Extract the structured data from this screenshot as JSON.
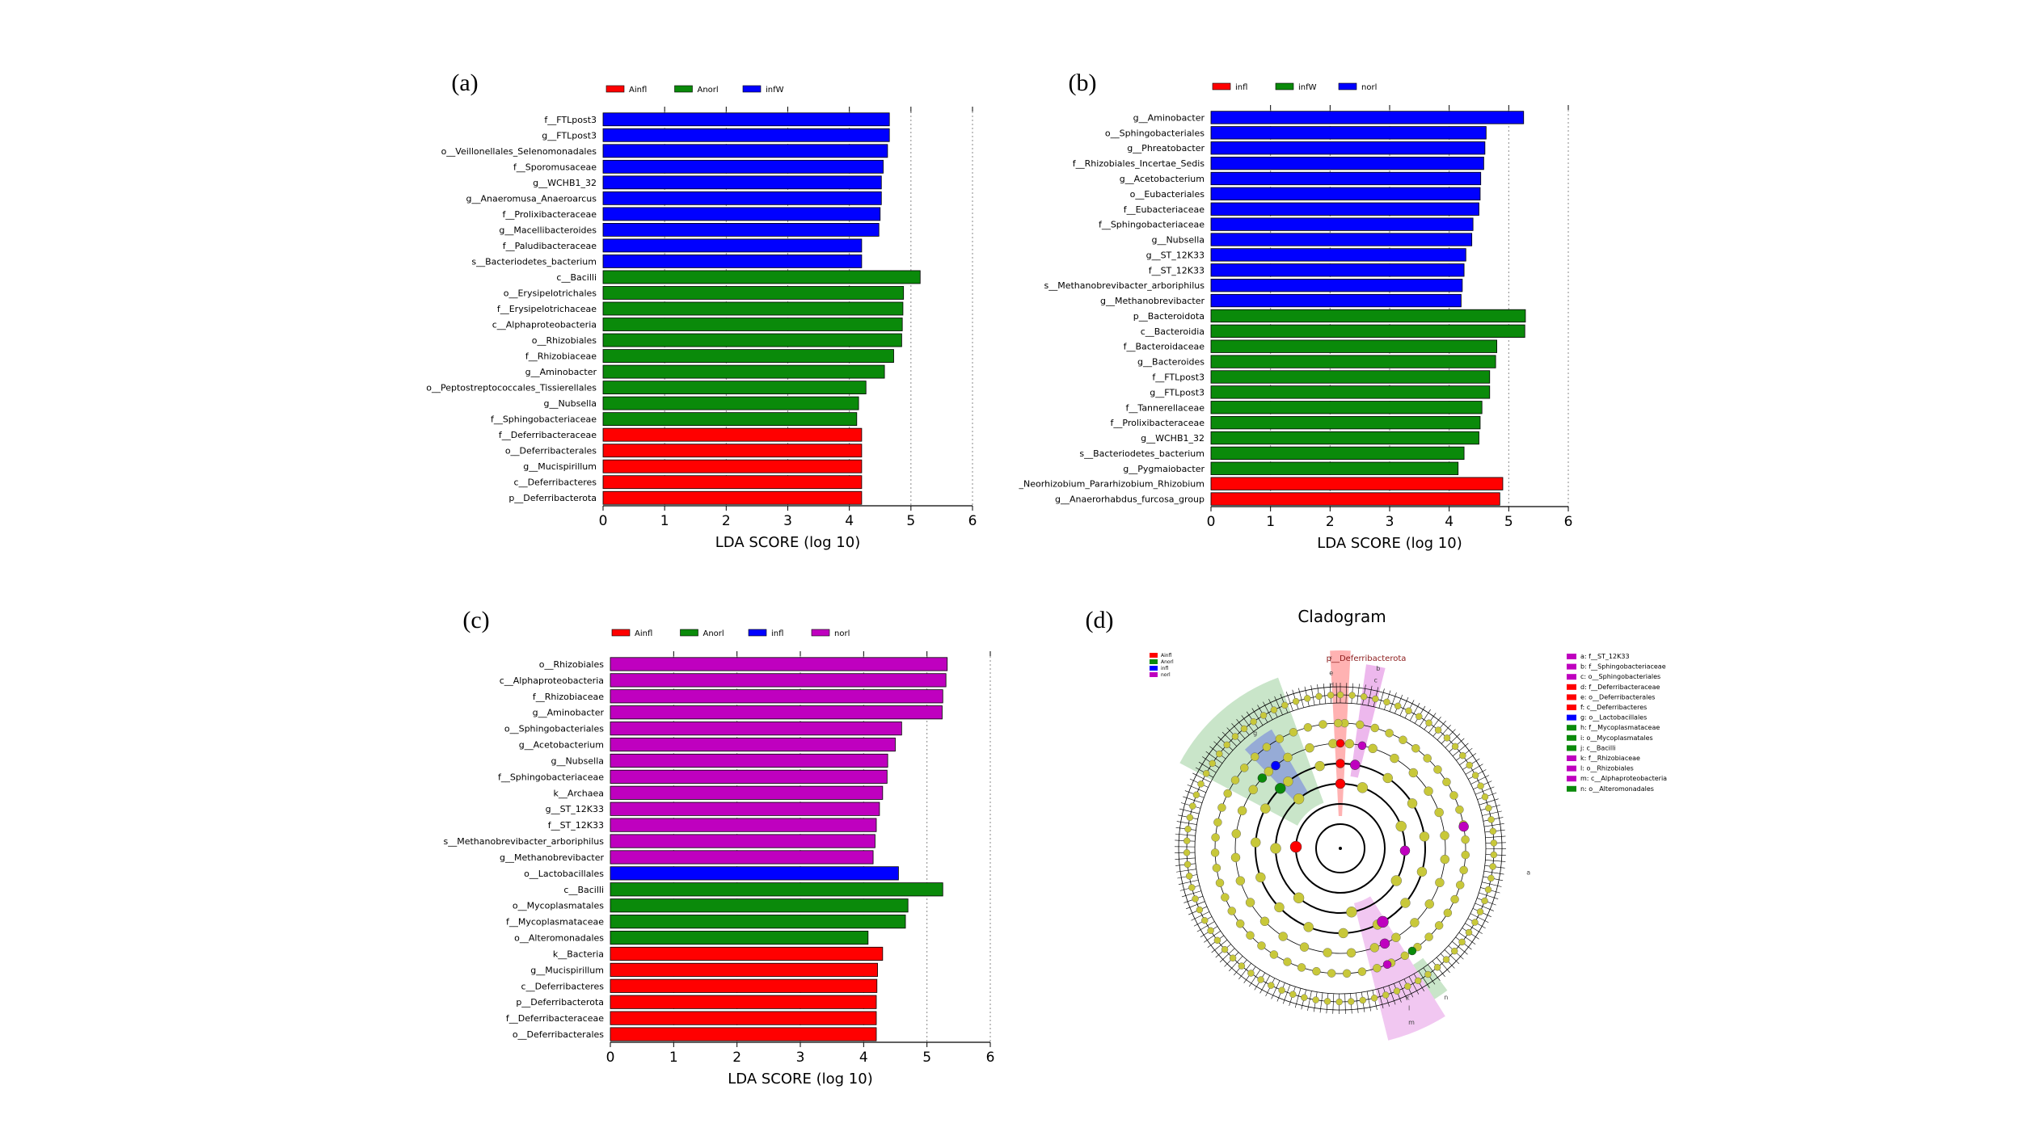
{
  "figure": {
    "colors": {
      "red": "#ff0000",
      "green": "#0a8a0a",
      "blue": "#0000ff",
      "magenta": "#bf00bf",
      "yellow_node": "#c8c83a"
    }
  },
  "chart_data": [
    {
      "type": "bar",
      "panel": "(a)",
      "orientation": "horizontal",
      "xlabel": "LDA SCORE (log 10)",
      "xlim": [
        0,
        6
      ],
      "xticks": [
        0,
        1,
        2,
        3,
        4,
        5,
        6
      ],
      "legend": [
        {
          "name": "Ainfl",
          "color": "#ff0000"
        },
        {
          "name": "Anorl",
          "color": "#0a8a0a"
        },
        {
          "name": "infW",
          "color": "#0000ff"
        }
      ],
      "bars": [
        {
          "label": "f__FTLpost3",
          "value": 4.65,
          "group": "infW"
        },
        {
          "label": "g__FTLpost3",
          "value": 4.65,
          "group": "infW"
        },
        {
          "label": "o__Veillonellales_Selenomonadales",
          "value": 4.62,
          "group": "infW"
        },
        {
          "label": "f__Sporomusaceae",
          "value": 4.55,
          "group": "infW"
        },
        {
          "label": "g__WCHB1_32",
          "value": 4.52,
          "group": "infW"
        },
        {
          "label": "g__Anaeromusa_Anaeroarcus",
          "value": 4.52,
          "group": "infW"
        },
        {
          "label": "f__Prolixibacteraceae",
          "value": 4.5,
          "group": "infW"
        },
        {
          "label": "g__Macellibacteroides",
          "value": 4.48,
          "group": "infW"
        },
        {
          "label": "f__Paludibacteraceae",
          "value": 4.2,
          "group": "infW"
        },
        {
          "label": "s__Bacteriodetes_bacterium",
          "value": 4.2,
          "group": "infW"
        },
        {
          "label": "c__Bacilli",
          "value": 5.15,
          "group": "Anorl"
        },
        {
          "label": "o__Erysipelotrichales",
          "value": 4.88,
          "group": "Anorl"
        },
        {
          "label": "f__Erysipelotrichaceae",
          "value": 4.87,
          "group": "Anorl"
        },
        {
          "label": "c__Alphaproteobacteria",
          "value": 4.86,
          "group": "Anorl"
        },
        {
          "label": "o__Rhizobiales",
          "value": 4.85,
          "group": "Anorl"
        },
        {
          "label": "f__Rhizobiaceae",
          "value": 4.72,
          "group": "Anorl"
        },
        {
          "label": "g__Aminobacter",
          "value": 4.57,
          "group": "Anorl"
        },
        {
          "label": "o__Peptostreptococcales_Tissierellales",
          "value": 4.27,
          "group": "Anorl"
        },
        {
          "label": "g__Nubsella",
          "value": 4.15,
          "group": "Anorl"
        },
        {
          "label": "f__Sphingobacteriaceae",
          "value": 4.12,
          "group": "Anorl"
        },
        {
          "label": "f__Deferribacteraceae",
          "value": 4.2,
          "group": "Ainfl"
        },
        {
          "label": "o__Deferribacterales",
          "value": 4.2,
          "group": "Ainfl"
        },
        {
          "label": "g__Mucispirillum",
          "value": 4.2,
          "group": "Ainfl"
        },
        {
          "label": "c__Deferribacteres",
          "value": 4.2,
          "group": "Ainfl"
        },
        {
          "label": "p__Deferribacterota",
          "value": 4.2,
          "group": "Ainfl"
        }
      ]
    },
    {
      "type": "bar",
      "panel": "(b)",
      "orientation": "horizontal",
      "xlabel": "LDA SCORE (log 10)",
      "xlim": [
        0,
        6
      ],
      "xticks": [
        0,
        1,
        2,
        3,
        4,
        5,
        6
      ],
      "legend": [
        {
          "name": "infl",
          "color": "#ff0000"
        },
        {
          "name": "infW",
          "color": "#0a8a0a"
        },
        {
          "name": "norl",
          "color": "#0000ff"
        }
      ],
      "bars": [
        {
          "label": "g__Aminobacter",
          "value": 5.25,
          "group": "norl"
        },
        {
          "label": "o__Sphingobacteriales",
          "value": 4.62,
          "group": "norl"
        },
        {
          "label": "g__Phreatobacter",
          "value": 4.6,
          "group": "norl"
        },
        {
          "label": "f__Rhizobiales_Incertae_Sedis",
          "value": 4.58,
          "group": "norl"
        },
        {
          "label": "g__Acetobacterium",
          "value": 4.53,
          "group": "norl"
        },
        {
          "label": "o__Eubacteriales",
          "value": 4.52,
          "group": "norl"
        },
        {
          "label": "f__Eubacteriaceae",
          "value": 4.5,
          "group": "norl"
        },
        {
          "label": "f__Sphingobacteriaceae",
          "value": 4.4,
          "group": "norl"
        },
        {
          "label": "g__Nubsella",
          "value": 4.38,
          "group": "norl"
        },
        {
          "label": "g__ST_12K33",
          "value": 4.28,
          "group": "norl"
        },
        {
          "label": "f__ST_12K33",
          "value": 4.25,
          "group": "norl"
        },
        {
          "label": "s__Methanobrevibacter_arboriphilus",
          "value": 4.22,
          "group": "norl"
        },
        {
          "label": "g__Methanobrevibacter",
          "value": 4.2,
          "group": "norl"
        },
        {
          "label": "p__Bacteroidota",
          "value": 5.28,
          "group": "infW"
        },
        {
          "label": "c__Bacteroidia",
          "value": 5.27,
          "group": "infW"
        },
        {
          "label": "f__Bacteroidaceae",
          "value": 4.8,
          "group": "infW"
        },
        {
          "label": "g__Bacteroides",
          "value": 4.78,
          "group": "infW"
        },
        {
          "label": "f__FTLpost3",
          "value": 4.68,
          "group": "infW"
        },
        {
          "label": "g__FTLpost3",
          "value": 4.68,
          "group": "infW"
        },
        {
          "label": "f__Tannerellaceae",
          "value": 4.55,
          "group": "infW"
        },
        {
          "label": "f__Prolixibacteraceae",
          "value": 4.52,
          "group": "infW"
        },
        {
          "label": "g__WCHB1_32",
          "value": 4.5,
          "group": "infW"
        },
        {
          "label": "s__Bacteriodetes_bacterium",
          "value": 4.25,
          "group": "infW"
        },
        {
          "label": "g__Pygmaiobacter",
          "value": 4.15,
          "group": "infW"
        },
        {
          "label": "_Neorhizobium_Pararhizobium_Rhizobium",
          "value": 4.9,
          "group": "infl"
        },
        {
          "label": "g__Anaerorhabdus_furcosa_group",
          "value": 4.85,
          "group": "infl"
        }
      ]
    },
    {
      "type": "bar",
      "panel": "(c)",
      "orientation": "horizontal",
      "xlabel": "LDA SCORE (log 10)",
      "xlim": [
        0,
        6
      ],
      "xticks": [
        0,
        1,
        2,
        3,
        4,
        5,
        6
      ],
      "legend": [
        {
          "name": "Ainfl",
          "color": "#ff0000"
        },
        {
          "name": "Anorl",
          "color": "#0a8a0a"
        },
        {
          "name": "infl",
          "color": "#0000ff"
        },
        {
          "name": "norl",
          "color": "#bf00bf"
        }
      ],
      "bars": [
        {
          "label": "o__Rhizobiales",
          "value": 5.32,
          "group": "norl"
        },
        {
          "label": "c__Alphaproteobacteria",
          "value": 5.3,
          "group": "norl"
        },
        {
          "label": "f__Rhizobiaceae",
          "value": 5.25,
          "group": "norl"
        },
        {
          "label": "g__Aminobacter",
          "value": 5.24,
          "group": "norl"
        },
        {
          "label": "o__Sphingobacteriales",
          "value": 4.6,
          "group": "norl"
        },
        {
          "label": "g__Acetobacterium",
          "value": 4.5,
          "group": "norl"
        },
        {
          "label": "g__Nubsella",
          "value": 4.38,
          "group": "norl"
        },
        {
          "label": "f__Sphingobacteriaceae",
          "value": 4.37,
          "group": "norl"
        },
        {
          "label": "k__Archaea",
          "value": 4.3,
          "group": "norl"
        },
        {
          "label": "g__ST_12K33",
          "value": 4.25,
          "group": "norl"
        },
        {
          "label": "f__ST_12K33",
          "value": 4.2,
          "group": "norl"
        },
        {
          "label": "s__Methanobrevibacter_arboriphilus",
          "value": 4.18,
          "group": "norl"
        },
        {
          "label": "g__Methanobrevibacter",
          "value": 4.15,
          "group": "norl"
        },
        {
          "label": "o__Lactobacillales",
          "value": 4.55,
          "group": "infl"
        },
        {
          "label": "c__Bacilli",
          "value": 5.25,
          "group": "Anorl"
        },
        {
          "label": "o__Mycoplasmatales",
          "value": 4.7,
          "group": "Anorl"
        },
        {
          "label": "f__Mycoplasmataceae",
          "value": 4.66,
          "group": "Anorl"
        },
        {
          "label": "o__Alteromonadales",
          "value": 4.07,
          "group": "Anorl"
        },
        {
          "label": "k__Bacteria",
          "value": 4.3,
          "group": "Ainfl"
        },
        {
          "label": "g__Mucispirillum",
          "value": 4.22,
          "group": "Ainfl"
        },
        {
          "label": "c__Deferribacteres",
          "value": 4.21,
          "group": "Ainfl"
        },
        {
          "label": "p__Deferribacterota",
          "value": 4.2,
          "group": "Ainfl"
        },
        {
          "label": "f__Deferribacteraceae",
          "value": 4.2,
          "group": "Ainfl"
        },
        {
          "label": "o__Deferribacterales",
          "value": 4.2,
          "group": "Ainfl"
        }
      ]
    },
    {
      "type": "cladogram",
      "panel": "(d)",
      "title": "Cladogram",
      "top_label": "p__Deferribacterota",
      "legend": [
        {
          "name": "Ainfl",
          "color": "#ff0000"
        },
        {
          "name": "Anorl",
          "color": "#0a8a0a"
        },
        {
          "name": "infl",
          "color": "#0000ff"
        },
        {
          "name": "norl",
          "color": "#bf00bf"
        }
      ],
      "key": [
        {
          "text": "a: f__ST_12K33",
          "color": "#bf00bf"
        },
        {
          "text": "b: f__Sphingobacteriaceae",
          "color": "#bf00bf"
        },
        {
          "text": "c: o__Sphingobacteriales",
          "color": "#bf00bf"
        },
        {
          "text": "d: f__Deferribacteraceae",
          "color": "#ff0000"
        },
        {
          "text": "e: o__Deferribacterales",
          "color": "#ff0000"
        },
        {
          "text": "f: c__Deferribacteres",
          "color": "#ff0000"
        },
        {
          "text": "g: o__Lactobacillales",
          "color": "#0000ff"
        },
        {
          "text": "h: f__Mycoplasmataceae",
          "color": "#0a8a0a"
        },
        {
          "text": "i: o__Mycoplasmatales",
          "color": "#0a8a0a"
        },
        {
          "text": "j: c__Bacilli",
          "color": "#0a8a0a"
        },
        {
          "text": "k: f__Rhizobiaceae",
          "color": "#bf00bf"
        },
        {
          "text": "l: o__Rhizobiales",
          "color": "#bf00bf"
        },
        {
          "text": "m: c__Alphaproteobacteria",
          "color": "#bf00bf"
        },
        {
          "text": "n: o__Alteromonadales",
          "color": "#0a8a0a"
        }
      ],
      "sector_labels": [
        "g",
        "d",
        "e",
        "f",
        "c",
        "b",
        "m",
        "l",
        "k",
        "a",
        "n"
      ]
    }
  ]
}
